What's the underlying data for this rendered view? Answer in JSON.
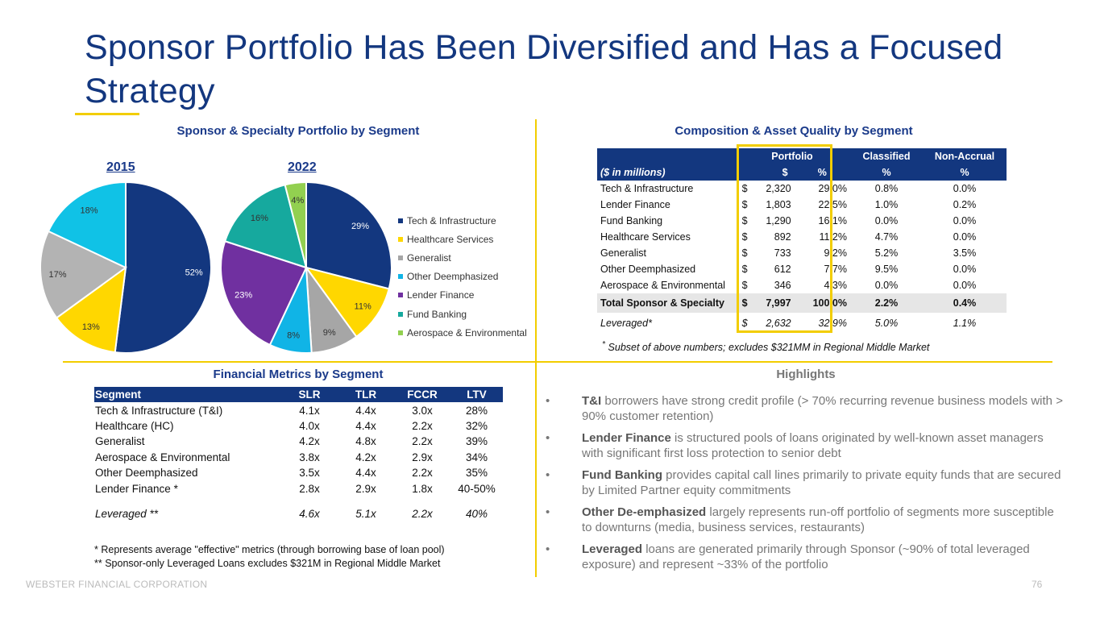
{
  "title": "Sponsor Portfolio Has Been Diversified and Has a Focused Strategy",
  "footer": "WEBSTER FINANCIAL CORPORATION",
  "page_number": "76",
  "colors": {
    "navy": "#13377f",
    "gold": "#f2cd00"
  },
  "pie_section": {
    "heading": "Sponsor & Specialty Portfolio by Segment",
    "year_2015": "2015",
    "year_2022": "2022"
  },
  "chart_data": [
    {
      "type": "pie",
      "title": "2015",
      "labels": [
        "Tech & Infrastructure",
        "Healthcare Services",
        "Generalist",
        "Other Deemphasized"
      ],
      "values": [
        52,
        13,
        17,
        18
      ],
      "value_labels": [
        "52%",
        "13%",
        "17%",
        "18%"
      ],
      "colors": [
        "#13377f",
        "#ffd700",
        "#b3b3b3",
        "#10c2e6"
      ]
    },
    {
      "type": "pie",
      "title": "2022",
      "labels": [
        "Tech & Infrastructure",
        "Healthcare Services",
        "Generalist",
        "Other Deemphasized",
        "Lender Finance",
        "Fund Banking",
        "Aerospace & Environmental"
      ],
      "values": [
        29,
        11,
        9,
        8,
        23,
        16,
        4
      ],
      "value_labels": [
        "29%",
        "11%",
        "9%",
        "8%",
        "23%",
        "16%",
        "4%"
      ],
      "colors": [
        "#13377f",
        "#ffd700",
        "#a6a6a6",
        "#10b4e6",
        "#7030a0",
        "#16a99e",
        "#92d050"
      ],
      "legend": [
        "Tech & Infrastructure",
        "Healthcare Services",
        "Generalist",
        "Other Deemphasized",
        "Lender Finance",
        "Fund Banking",
        "Aerospace & Environmental"
      ],
      "legend_position": "right"
    }
  ],
  "composition": {
    "heading": "Composition & Asset Quality by Segment",
    "header": {
      "portfolio": "Portfolio",
      "classified": "Classified",
      "nonaccrual": "Non-Accrual",
      "units": "($ in millions)",
      "dollar": "$",
      "pct": "%",
      "pct2": "%",
      "pct3": "%"
    },
    "rows": [
      {
        "seg": "Tech & Infrastructure",
        "cur": "$",
        "amt": "2,320",
        "pct": "29.0%",
        "cls": "0.8%",
        "na": "0.0%"
      },
      {
        "seg": "Lender Finance",
        "cur": "$",
        "amt": "1,803",
        "pct": "22.5%",
        "cls": "1.0%",
        "na": "0.2%"
      },
      {
        "seg": "Fund Banking",
        "cur": "$",
        "amt": "1,290",
        "pct": "16.1%",
        "cls": "0.0%",
        "na": "0.0%"
      },
      {
        "seg": "Healthcare Services",
        "cur": "$",
        "amt": "892",
        "pct": "11.2%",
        "cls": "4.7%",
        "na": "0.0%"
      },
      {
        "seg": "Generalist",
        "cur": "$",
        "amt": "733",
        "pct": "9.2%",
        "cls": "5.2%",
        "na": "3.5%"
      },
      {
        "seg": "Other Deemphasized",
        "cur": "$",
        "amt": "612",
        "pct": "7.7%",
        "cls": "9.5%",
        "na": "0.0%"
      },
      {
        "seg": "Aerospace & Environmental",
        "cur": "$",
        "amt": "346",
        "pct": "4.3%",
        "cls": "0.0%",
        "na": "0.0%"
      }
    ],
    "total": {
      "seg": "Total Sponsor & Specialty",
      "cur": "$",
      "amt": "7,997",
      "pct": "100.0%",
      "cls": "2.2%",
      "na": "0.4%"
    },
    "leveraged": {
      "seg": "Leveraged*",
      "cur": "$",
      "amt": "2,632",
      "pct": "32.9%",
      "cls": "5.0%",
      "na": "1.1%"
    },
    "footnote_mark": "*",
    "footnote": "Subset of above numbers; excludes $321MM in Regional Middle Market"
  },
  "financial": {
    "heading": "Financial Metrics by Segment",
    "header": [
      "Segment",
      "SLR",
      "TLR",
      "FCCR",
      "LTV"
    ],
    "rows": [
      [
        "Tech & Infrastructure (T&I)",
        "4.1x",
        "4.4x",
        "3.0x",
        "28%"
      ],
      [
        "Healthcare (HC)",
        "4.0x",
        "4.4x",
        "2.2x",
        "32%"
      ],
      [
        "Generalist",
        "4.2x",
        "4.8x",
        "2.2x",
        "39%"
      ],
      [
        "Aerospace & Environmental",
        "3.8x",
        "4.2x",
        "2.9x",
        "34%"
      ],
      [
        "Other Deemphasized",
        "3.5x",
        "4.4x",
        "2.2x",
        "35%"
      ],
      [
        "Lender Finance *",
        "2.8x",
        "2.9x",
        "1.8x",
        "40-50%"
      ]
    ],
    "leveraged": [
      "Leveraged **",
      "4.6x",
      "5.1x",
      "2.2x",
      "40%"
    ],
    "note1": "* Represents average \"effective\" metrics (through borrowing base of loan pool)",
    "note2": "** Sponsor-only Leveraged Loans excludes $321M in Regional Middle Market"
  },
  "highlights": {
    "heading": "Highlights",
    "bullet": "•",
    "items": [
      {
        "bold": "T&I",
        "text": " borrowers have strong credit profile (> 70% recurring revenue business models with > 90% customer retention)"
      },
      {
        "bold": "Lender Finance",
        "text": " is structured pools of loans originated by well-known asset managers with significant first loss protection to senior debt"
      },
      {
        "bold": "Fund Banking",
        "text": " provides capital call lines primarily to private equity funds that are secured by Limited Partner equity commitments"
      },
      {
        "bold": "Other De-emphasized",
        "text": " largely represents run-off portfolio of segments more susceptible to downturns (media, business services, restaurants)"
      },
      {
        "bold": "Leveraged",
        "text": " loans are generated primarily through Sponsor (~90% of total leveraged exposure) and represent ~33% of the portfolio"
      }
    ]
  }
}
